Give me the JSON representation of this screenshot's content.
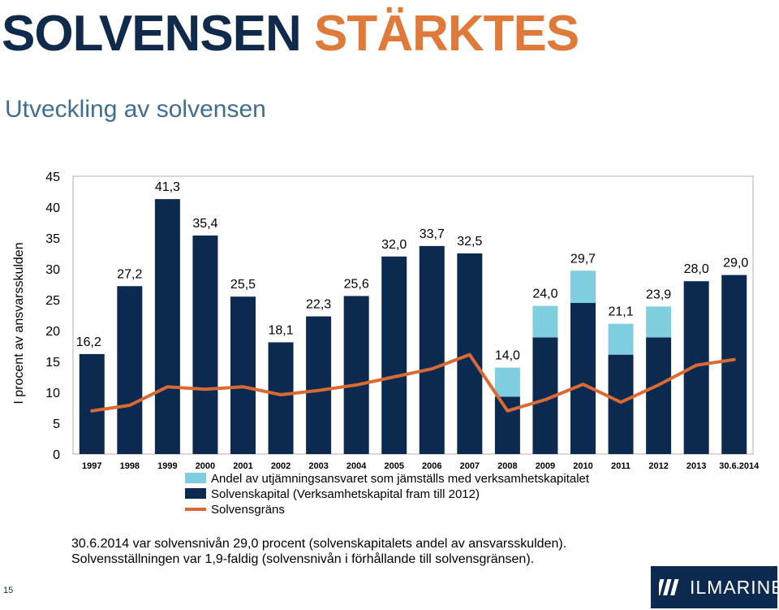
{
  "slide": {
    "heading_part1": "SOLVENSEN",
    "heading_part2": "STÄRKTES",
    "subtitle": "Utveckling av solvensen",
    "note_line1": "30.6.2014 var solvensnivån 29,0 procent (solvenskapitalets andel av ansvarsskulden).",
    "note_line2": "Solvensställningen var 1,9-faldig (solvensnivån i förhållande till solvensgränsen).",
    "page_number": "15",
    "logo_text": "ILMARINEN"
  },
  "colors": {
    "dark_navy": "#0c2a4f",
    "light_blue": "#7fcfe0",
    "orange": "#d96a33",
    "title_accent": "#e07a3a"
  },
  "chart_data": {
    "type": "bar",
    "stacked": true,
    "ylabel": "I procent av ansvarsskulden",
    "ylim": [
      0,
      45
    ],
    "yticks": [
      0,
      5,
      10,
      15,
      20,
      25,
      30,
      35,
      40,
      45
    ],
    "grid": false,
    "legend_position": "bottom",
    "categories": [
      "1997",
      "1998",
      "1999",
      "2000",
      "2001",
      "2002",
      "2003",
      "2004",
      "2005",
      "2006",
      "2007",
      "2008",
      "2009",
      "2010",
      "2011",
      "2012",
      "2013",
      "30.6.2014"
    ],
    "total_labels": [
      "16,2",
      "27,2",
      "41,3",
      "35,4",
      "25,5",
      "18,1",
      "22,3",
      "25,6",
      "32,0",
      "33,7",
      "32,5",
      "14,0",
      "24,0",
      "29,7",
      "21,1",
      "23,9",
      "28,0",
      "29,0"
    ],
    "series": [
      {
        "name": "Solvenskapital (Verksamhetskapital fram till 2012)",
        "type": "bar",
        "color": "#0c2a4f",
        "values": [
          16.2,
          27.2,
          41.3,
          35.4,
          25.5,
          18.1,
          22.3,
          25.6,
          32.0,
          33.7,
          32.5,
          9.3,
          18.9,
          24.5,
          16.1,
          18.9,
          28.0,
          29.0
        ]
      },
      {
        "name": "Andel av utjämningsansvaret som jämställs med verksamhetskapitalet",
        "type": "bar",
        "color": "#7fcfe0",
        "values": [
          0,
          0,
          0,
          0,
          0,
          0,
          0,
          0,
          0,
          0,
          0,
          4.7,
          5.1,
          5.2,
          5.0,
          5.0,
          0,
          0
        ]
      },
      {
        "name": "Solvensgräns",
        "type": "line",
        "color": "#d96a33",
        "values": [
          7.0,
          7.9,
          10.9,
          10.5,
          10.9,
          9.6,
          10.3,
          11.2,
          12.5,
          13.8,
          16.1,
          7.0,
          8.8,
          11.3,
          8.4,
          11.2,
          14.4,
          15.3
        ]
      }
    ]
  }
}
